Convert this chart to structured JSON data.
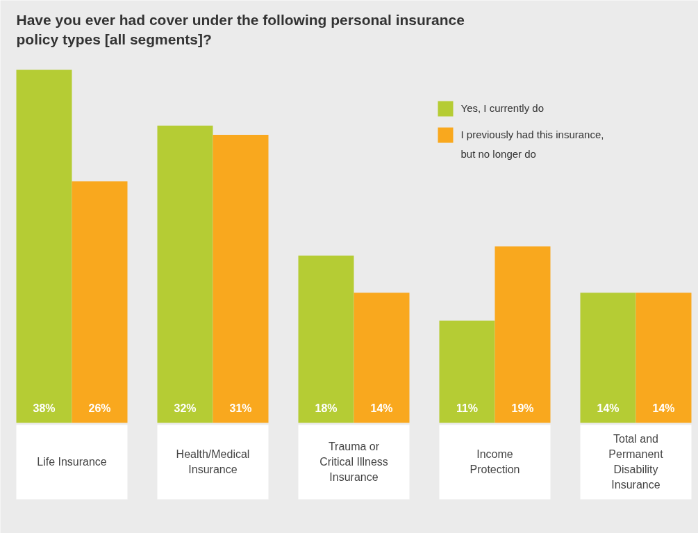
{
  "chart_data": {
    "type": "bar",
    "title": "Have you ever had cover under the following personal insurance policy types [all segments]?",
    "categories": [
      "Life Insurance",
      "Health/Medical Insurance",
      "Trauma or Critical Illness Insurance",
      "Income Protection",
      "Total and Permanent Disability Insurance"
    ],
    "series": [
      {
        "name": "Yes, I currently do",
        "color": "#b5cc34",
        "values": [
          38,
          32,
          18,
          11,
          14
        ],
        "value_labels": [
          "38%",
          "32%",
          "18%",
          "11%",
          "14%"
        ]
      },
      {
        "name": "I previously had this insurance, but no longer do",
        "color": "#f9a81e",
        "values": [
          26,
          31,
          14,
          19,
          14
        ],
        "value_labels": [
          "26%",
          "31%",
          "14%",
          "19%",
          "14%"
        ]
      }
    ],
    "relative": false,
    "legend": "top right"
  }
}
